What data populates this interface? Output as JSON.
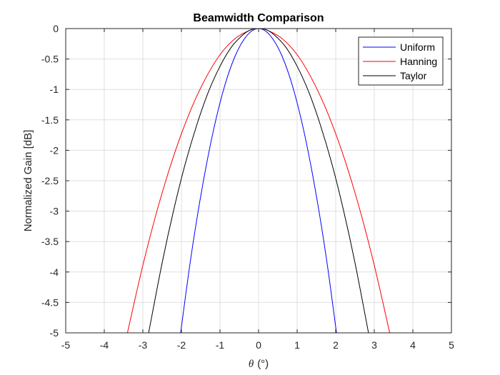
{
  "chart_data": {
    "type": "line",
    "title": "Beamwidth Comparison",
    "xlabel_symbol": "θ",
    "xlabel_unit": "(°)",
    "ylabel": "Normalized Gain [dB]",
    "xlim": [
      -5,
      5
    ],
    "ylim": [
      -5,
      0
    ],
    "xticks": [
      -5,
      -4,
      -3,
      -2,
      -1,
      0,
      1,
      2,
      3,
      4,
      5
    ],
    "yticks": [
      0,
      -0.5,
      -1,
      -1.5,
      -2,
      -2.5,
      -3,
      -3.5,
      -4,
      -4.5,
      -5
    ],
    "grid": true,
    "legend_position": "top-right",
    "series": [
      {
        "name": "Uniform",
        "color": "#0000ff",
        "x": [
          -2.02,
          -1.8,
          -1.6,
          -1.4,
          -1.2,
          -1.0,
          -0.8,
          -0.6,
          -0.4,
          -0.2,
          0,
          0.2,
          0.4,
          0.6,
          0.8,
          1.0,
          1.2,
          1.4,
          1.6,
          1.8,
          2.02
        ],
        "y": [
          -5.0,
          -3.96,
          -3.13,
          -2.4,
          -1.76,
          -1.22,
          -0.78,
          -0.44,
          -0.2,
          -0.05,
          0,
          -0.05,
          -0.2,
          -0.44,
          -0.78,
          -1.22,
          -1.76,
          -2.4,
          -3.13,
          -3.96,
          -5.0
        ]
      },
      {
        "name": "Hanning",
        "color": "#ff0000",
        "x": [
          -3.4,
          -3.0,
          -2.6,
          -2.2,
          -1.8,
          -1.4,
          -1.0,
          -0.6,
          -0.2,
          0,
          0.2,
          0.6,
          1.0,
          1.4,
          1.8,
          2.2,
          2.6,
          3.0,
          3.4
        ],
        "y": [
          -5.0,
          -3.89,
          -2.92,
          -2.09,
          -1.4,
          -0.85,
          -0.43,
          -0.16,
          -0.02,
          0,
          -0.02,
          -0.16,
          -0.43,
          -0.85,
          -1.4,
          -2.09,
          -2.92,
          -3.89,
          -5.0
        ]
      },
      {
        "name": "Taylor",
        "color": "#000000",
        "x": [
          -2.85,
          -2.5,
          -2.2,
          -1.9,
          -1.6,
          -1.3,
          -1.0,
          -0.7,
          -0.4,
          -0.2,
          0,
          0.2,
          0.4,
          0.7,
          1.0,
          1.3,
          1.6,
          1.9,
          2.2,
          2.5,
          2.85
        ],
        "y": [
          -5.0,
          -3.85,
          -2.98,
          -2.22,
          -1.58,
          -1.04,
          -0.62,
          -0.3,
          -0.1,
          -0.02,
          0,
          -0.02,
          -0.1,
          -0.3,
          -0.62,
          -1.04,
          -1.58,
          -2.22,
          -2.98,
          -3.85,
          -5.0
        ]
      }
    ]
  }
}
